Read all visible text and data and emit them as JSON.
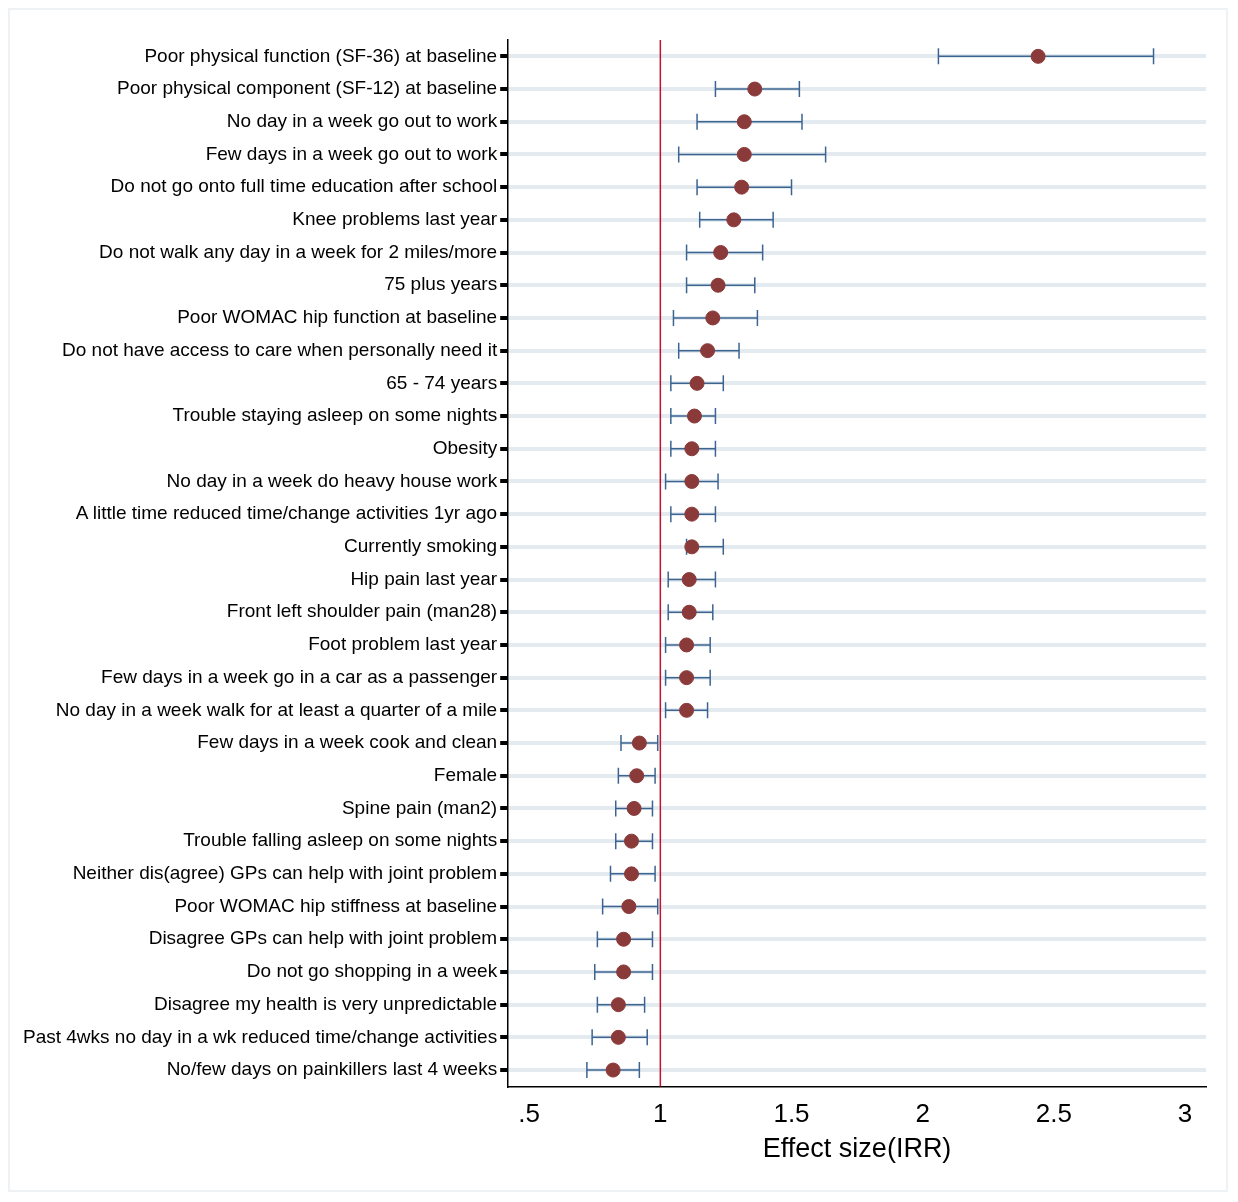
{
  "chart_data": {
    "type": "scatter",
    "xlabel": "Effect size(IRR)",
    "categories": [
      "Poor physical function (SF-36) at baseline",
      "Poor physical component (SF-12) at baseline",
      "No day in a week go out to work",
      "Few days in a week go out to work",
      "Do not go onto full time education after school",
      "Knee problems last year",
      "Do not walk any day in a week for 2 miles/more",
      "75 plus years",
      "Poor WOMAC hip function at baseline",
      "Do not have access to care when personally need it",
      "65 - 74 years",
      "Trouble staying asleep on some nights",
      "Obesity",
      "No day in a week do heavy house work",
      "A little time reduced time/change activities 1yr ago",
      "Currently smoking",
      "Hip pain last year",
      "Front left shoulder pain (man28)",
      "Foot problem last year",
      "Few days in a week go in a car as a passenger",
      "No day in a week walk for at least a quarter of a mile",
      "Few days in a week cook and clean",
      "Female",
      "Spine pain (man2)",
      "Trouble falling asleep on some nights",
      "Neither dis(agree) GPs can help with joint problem",
      "Poor WOMAC hip stiffness at baseline",
      "Disagree GPs can help with joint problem",
      "Do not go shopping in a week",
      "Disagree my health is very unpredictable",
      "Past 4wks no day in a wk reduced time/change activities",
      "No/few days on painkillers last 4 weeks"
    ],
    "orientation": "horizontal",
    "series": [
      {
        "color": "#8b3a3a",
        "values": [
          2.44,
          1.36,
          1.32,
          1.32,
          1.31,
          1.28,
          1.23,
          1.22,
          1.2,
          1.18,
          1.14,
          1.13,
          1.12,
          1.12,
          1.12,
          1.12,
          1.11,
          1.11,
          1.1,
          1.1,
          1.1,
          0.92,
          0.91,
          0.9,
          0.89,
          0.89,
          0.88,
          0.86,
          0.86,
          0.84,
          0.84,
          0.82
        ],
        "errors": [
          [
            2.06,
            2.88
          ],
          [
            1.21,
            1.53
          ],
          [
            1.14,
            1.54
          ],
          [
            1.07,
            1.63
          ],
          [
            1.14,
            1.5
          ],
          [
            1.15,
            1.43
          ],
          [
            1.1,
            1.39
          ],
          [
            1.1,
            1.36
          ],
          [
            1.05,
            1.37
          ],
          [
            1.07,
            1.3
          ],
          [
            1.04,
            1.24
          ],
          [
            1.04,
            1.21
          ],
          [
            1.04,
            1.21
          ],
          [
            1.02,
            1.22
          ],
          [
            1.04,
            1.21
          ],
          [
            1.1,
            1.24
          ],
          [
            1.03,
            1.21
          ],
          [
            1.03,
            1.2
          ],
          [
            1.02,
            1.19
          ],
          [
            1.02,
            1.19
          ],
          [
            1.02,
            1.18
          ],
          [
            0.85,
            0.99
          ],
          [
            0.84,
            0.98
          ],
          [
            0.83,
            0.97
          ],
          [
            0.83,
            0.97
          ],
          [
            0.81,
            0.98
          ],
          [
            0.78,
            0.99
          ],
          [
            0.76,
            0.97
          ],
          [
            0.75,
            0.97
          ],
          [
            0.76,
            0.94
          ],
          [
            0.74,
            0.95
          ],
          [
            0.72,
            0.92
          ]
        ]
      }
    ],
    "xlim": [
      0.42,
      3.08
    ],
    "xticks": [
      {
        "value": 0.5,
        "label": ".5"
      },
      1,
      1.5,
      2,
      2.5,
      3
    ],
    "ref_lines": [
      {
        "axis": "x",
        "value": 1,
        "color": "#c8102e"
      }
    ],
    "grid": "y",
    "legend": false,
    "marker": "circle"
  }
}
